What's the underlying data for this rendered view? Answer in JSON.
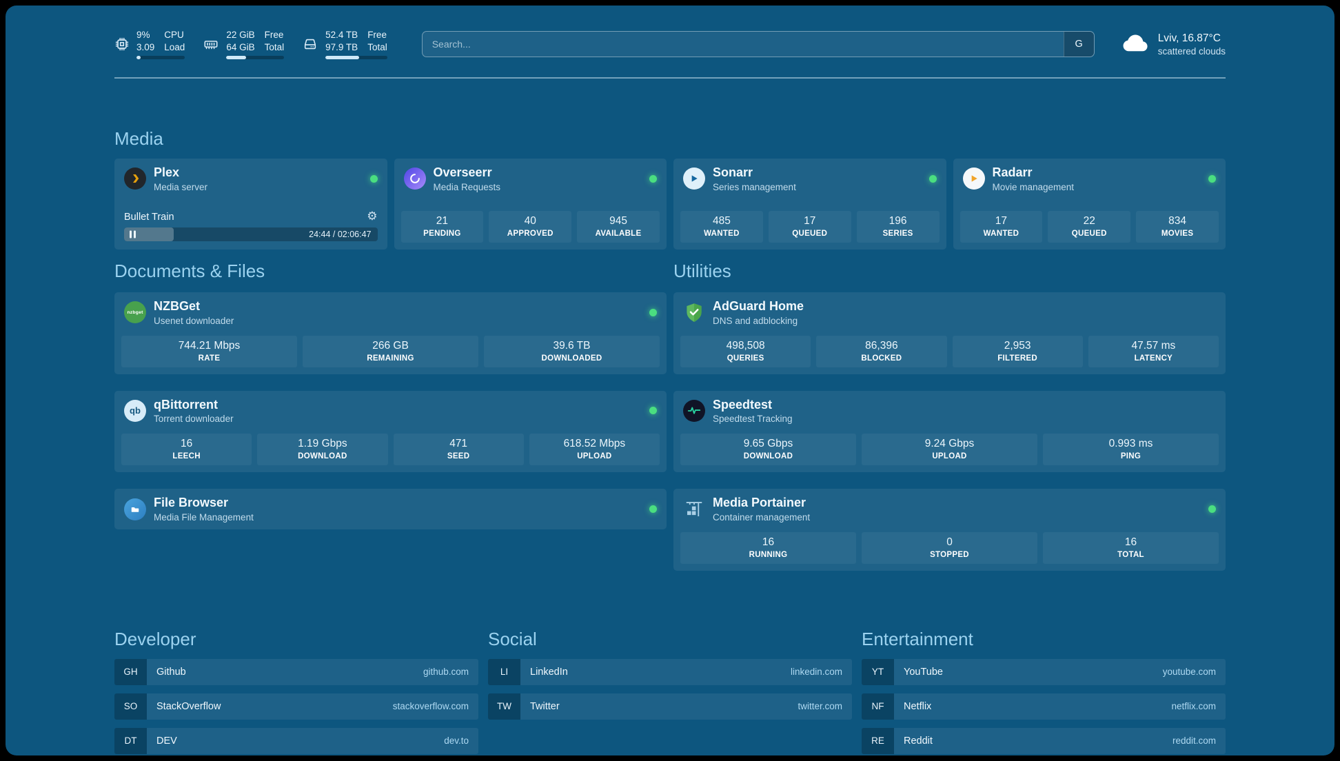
{
  "colors": {
    "background": "#0d567f",
    "status_online": "#4ade80",
    "heading_text": "#9bd2ef",
    "plex_orange": "#e5a00d"
  },
  "topbar": {
    "cpu": {
      "value_top": "9%",
      "value_bottom": "3.09",
      "label_top": "CPU",
      "label_bottom": "Load",
      "progress_pct": 9
    },
    "memory": {
      "value_top": "22 GiB",
      "value_bottom": "64 GiB",
      "label_top": "Free",
      "label_bottom": "Total",
      "progress_pct": 34
    },
    "disk": {
      "value_top": "52.4 TB",
      "value_bottom": "97.9 TB",
      "label_top": "Free",
      "label_bottom": "Total",
      "progress_pct": 54
    },
    "search": {
      "placeholder": "Search...",
      "engine_label": "G"
    },
    "weather": {
      "location": "Lviv, 16.87°C",
      "condition": "scattered clouds"
    }
  },
  "sections": {
    "media": {
      "title": "Media",
      "cards": [
        {
          "name": "Plex",
          "subtitle": "Media server",
          "icon": "plex-icon",
          "now_playing": {
            "title": "Bullet Train",
            "time": "24:44 / 02:06:47",
            "progress_pct": 19.6
          }
        },
        {
          "name": "Overseerr",
          "subtitle": "Media Requests",
          "icon": "overseerr-icon",
          "stats": [
            {
              "value": "21",
              "label": "PENDING"
            },
            {
              "value": "40",
              "label": "APPROVED"
            },
            {
              "value": "945",
              "label": "AVAILABLE"
            }
          ]
        },
        {
          "name": "Sonarr",
          "subtitle": "Series management",
          "icon": "sonarr-icon",
          "stats": [
            {
              "value": "485",
              "label": "WANTED"
            },
            {
              "value": "17",
              "label": "QUEUED"
            },
            {
              "value": "196",
              "label": "SERIES"
            }
          ]
        },
        {
          "name": "Radarr",
          "subtitle": "Movie management",
          "icon": "radarr-icon",
          "stats": [
            {
              "value": "17",
              "label": "WANTED"
            },
            {
              "value": "22",
              "label": "QUEUED"
            },
            {
              "value": "834",
              "label": "MOVIES"
            }
          ]
        }
      ]
    },
    "documents": {
      "title": "Documents & Files",
      "cards": [
        {
          "name": "NZBGet",
          "subtitle": "Usenet downloader",
          "icon": "nzbget-icon",
          "icon_text": "nzbget",
          "stats": [
            {
              "value": "744.21 Mbps",
              "label": "RATE"
            },
            {
              "value": "266 GB",
              "label": "REMAINING"
            },
            {
              "value": "39.6 TB",
              "label": "DOWNLOADED"
            }
          ]
        },
        {
          "name": "qBittorrent",
          "subtitle": "Torrent downloader",
          "icon": "qbittorrent-icon",
          "icon_text": "qb",
          "stats": [
            {
              "value": "16",
              "label": "LEECH"
            },
            {
              "value": "1.19 Gbps",
              "label": "DOWNLOAD"
            },
            {
              "value": "471",
              "label": "SEED"
            },
            {
              "value": "618.52 Mbps",
              "label": "UPLOAD"
            }
          ]
        },
        {
          "name": "File Browser",
          "subtitle": "Media File Management",
          "icon": "filebrowser-icon"
        }
      ]
    },
    "utilities": {
      "title": "Utilities",
      "cards": [
        {
          "name": "AdGuard Home",
          "subtitle": "DNS and adblocking",
          "icon": "adguard-icon",
          "stats": [
            {
              "value": "498,508",
              "label": "QUERIES"
            },
            {
              "value": "86,396",
              "label": "BLOCKED"
            },
            {
              "value": "2,953",
              "label": "FILTERED"
            },
            {
              "value": "47.57 ms",
              "label": "LATENCY"
            }
          ]
        },
        {
          "name": "Speedtest",
          "subtitle": "Speedtest Tracking",
          "icon": "speedtest-icon",
          "stats": [
            {
              "value": "9.65 Gbps",
              "label": "DOWNLOAD"
            },
            {
              "value": "9.24 Gbps",
              "label": "UPLOAD"
            },
            {
              "value": "0.993 ms",
              "label": "PING"
            }
          ]
        },
        {
          "name": "Media Portainer",
          "subtitle": "Container management",
          "icon": "portainer-icon",
          "stats": [
            {
              "value": "16",
              "label": "RUNNING"
            },
            {
              "value": "0",
              "label": "STOPPED"
            },
            {
              "value": "16",
              "label": "TOTAL"
            }
          ]
        }
      ]
    }
  },
  "bookmarks": {
    "developer": {
      "title": "Developer",
      "items": [
        {
          "abbr": "GH",
          "name": "Github",
          "url": "github.com"
        },
        {
          "abbr": "SO",
          "name": "StackOverflow",
          "url": "stackoverflow.com"
        },
        {
          "abbr": "DT",
          "name": "DEV",
          "url": "dev.to"
        }
      ]
    },
    "social": {
      "title": "Social",
      "items": [
        {
          "abbr": "LI",
          "name": "LinkedIn",
          "url": "linkedin.com"
        },
        {
          "abbr": "TW",
          "name": "Twitter",
          "url": "twitter.com"
        }
      ]
    },
    "entertainment": {
      "title": "Entertainment",
      "items": [
        {
          "abbr": "YT",
          "name": "YouTube",
          "url": "youtube.com"
        },
        {
          "abbr": "NF",
          "name": "Netflix",
          "url": "netflix.com"
        },
        {
          "abbr": "RE",
          "name": "Reddit",
          "url": "reddit.com"
        }
      ]
    }
  }
}
